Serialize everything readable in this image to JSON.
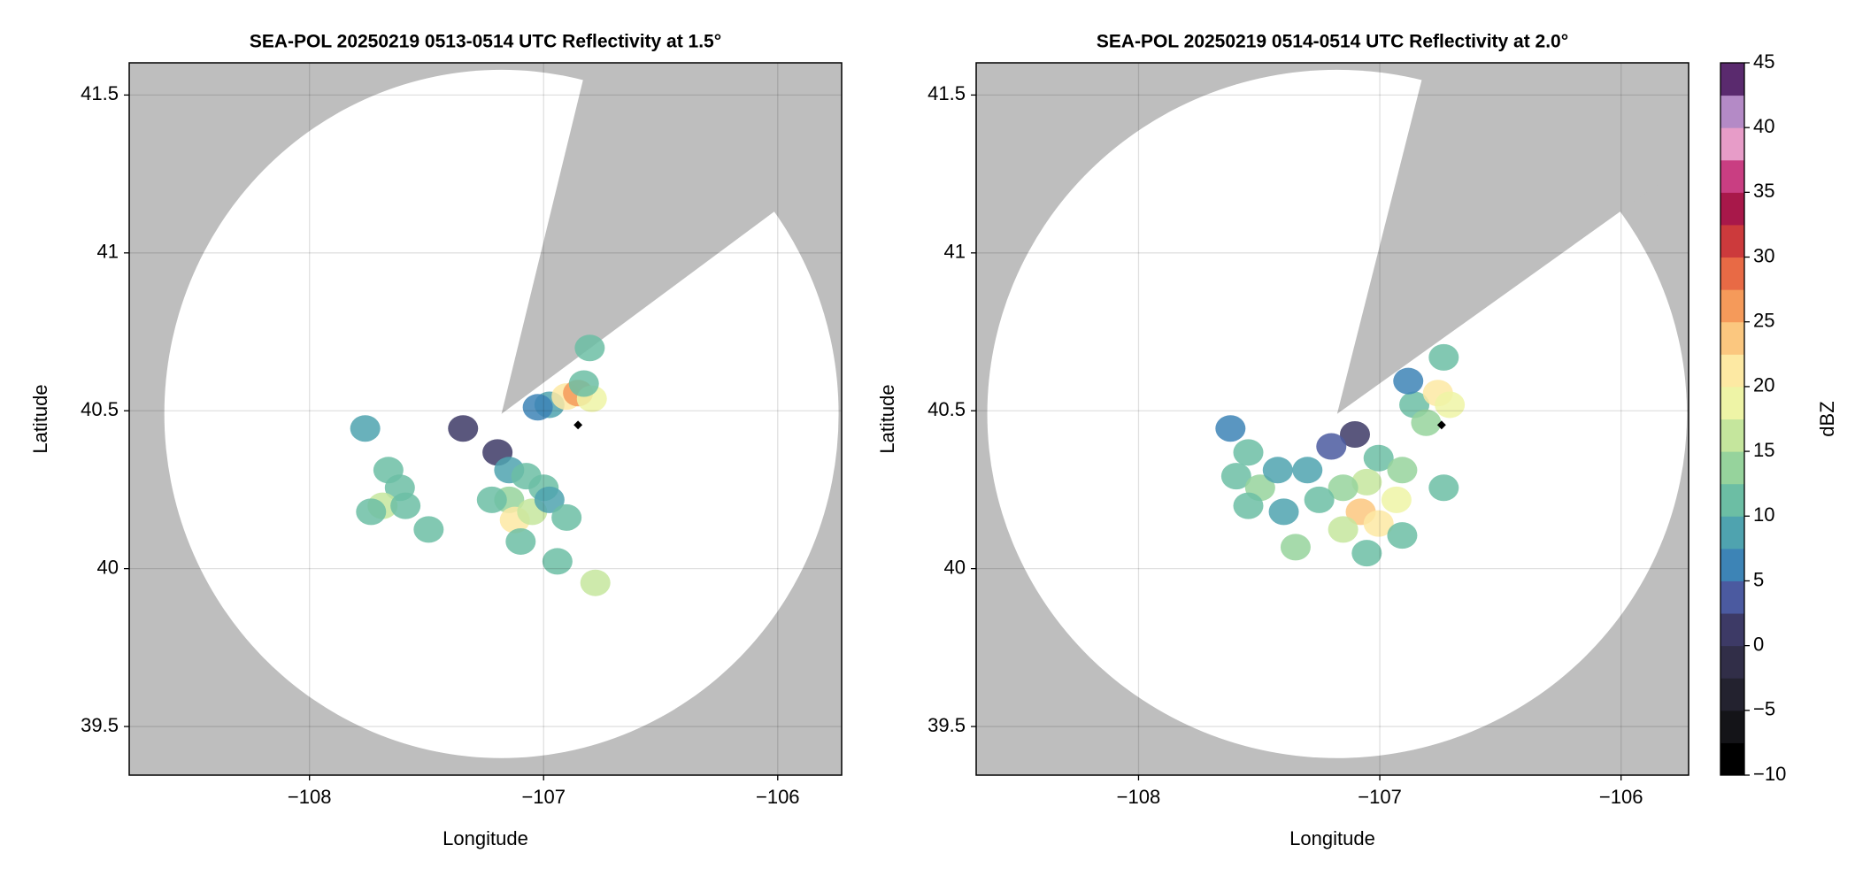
{
  "chart_data": [
    {
      "type": "radar_ppi",
      "title": "SEA-POL 20250219 0513-0514 UTC Reflectivity at 1.5°",
      "x_label": "Longitude",
      "y_label": "Latitude",
      "xlim": [
        -108.77,
        -105.727
      ],
      "ylim": [
        39.346,
        41.602
      ],
      "xticks": [
        {
          "value": -108,
          "label": "−108"
        },
        {
          "value": -107,
          "label": "−107"
        },
        {
          "value": -106,
          "label": "−106"
        }
      ],
      "yticks": [
        39.5,
        40.0,
        40.5,
        41.0,
        41.5
      ],
      "grid": true,
      "background": "#bebebe",
      "coverage_color": "#ffffff",
      "coverage": {
        "center_lon": -107.18,
        "center_lat": 40.49,
        "radius_lon": 1.44,
        "radius_lat": 1.09
      },
      "blocked_sector": [
        14,
        54
      ],
      "site": {
        "lon": -106.853,
        "lat": 40.455
      },
      "echoes": {
        "lon": [
          -106.975,
          -106.902,
          -106.853,
          -106.794,
          -106.828,
          -107.025,
          -106.803,
          -107.197,
          -107.147,
          -107.074,
          -107.0,
          -107.147,
          -107.221,
          -107.123,
          -107.049,
          -107.098,
          -106.975,
          -106.902,
          -107.344,
          -107.663,
          -107.614,
          -107.688,
          -107.59,
          -107.737,
          -107.762,
          -107.491,
          -106.779,
          -106.941
        ],
        "lat": [
          40.519,
          40.545,
          40.556,
          40.538,
          40.586,
          40.511,
          40.699,
          40.368,
          40.312,
          40.293,
          40.256,
          40.218,
          40.218,
          40.154,
          40.18,
          40.086,
          40.218,
          40.162,
          40.444,
          40.312,
          40.256,
          40.199,
          40.199,
          40.18,
          40.444,
          40.124,
          39.955,
          40.023
        ],
        "dbz": [
          8,
          20,
          25,
          18,
          12,
          5,
          12,
          0,
          8,
          12,
          10,
          14,
          10,
          22,
          16,
          12,
          8,
          10,
          2,
          10,
          12,
          16,
          10,
          12,
          8,
          10,
          17,
          10
        ]
      }
    },
    {
      "type": "radar_ppi",
      "title": "SEA-POL 20250219 0514-0514 UTC Reflectivity at 2.0°",
      "x_label": "Longitude",
      "y_label": "Latitude",
      "xlim": [
        -108.673,
        -105.72
      ],
      "ylim": [
        39.346,
        41.602
      ],
      "xticks": [
        {
          "value": -108,
          "label": "−108"
        },
        {
          "value": -107,
          "label": "−107"
        },
        {
          "value": -106,
          "label": "−106"
        }
      ],
      "yticks": [
        39.5,
        40.0,
        40.5,
        41.0,
        41.5
      ],
      "grid": true,
      "background": "#bebebe",
      "coverage_color": "#ffffff",
      "coverage": {
        "center_lon": -107.177,
        "center_lat": 40.49,
        "radius_lon": 1.45,
        "radius_lat": 1.09
      },
      "blocked_sector": [
        14,
        54
      ],
      "site": {
        "lon": -106.744,
        "lat": 40.455
      },
      "echoes": {
        "lon": [
          -106.857,
          -106.759,
          -106.71,
          -106.808,
          -106.735,
          -106.882,
          -107.103,
          -107.201,
          -107.005,
          -106.907,
          -107.054,
          -107.152,
          -106.931,
          -107.079,
          -107.005,
          -107.152,
          -106.907,
          -107.054,
          -107.251,
          -107.3,
          -107.545,
          -107.595,
          -107.496,
          -107.545,
          -107.423,
          -107.619,
          -107.398,
          -106.735,
          -107.349
        ],
        "lat": [
          40.519,
          40.556,
          40.519,
          40.462,
          40.669,
          40.594,
          40.425,
          40.387,
          40.35,
          40.312,
          40.274,
          40.256,
          40.218,
          40.18,
          40.143,
          40.124,
          40.105,
          40.049,
          40.218,
          40.312,
          40.368,
          40.293,
          40.256,
          40.199,
          40.312,
          40.444,
          40.18,
          40.256,
          40.068
        ],
        "dbz": [
          12,
          22,
          18,
          14,
          12,
          6,
          2,
          4,
          10,
          14,
          16,
          14,
          18,
          24,
          22,
          16,
          12,
          12,
          10,
          8,
          10,
          12,
          14,
          10,
          8,
          6,
          8,
          10,
          14
        ]
      }
    },
    {
      "type": "colorbar",
      "label": "dBZ",
      "lim": [
        -10,
        45
      ],
      "ticks": [
        {
          "value": -10,
          "label": "−10"
        },
        {
          "value": -5,
          "label": "−5"
        },
        0,
        5,
        10,
        15,
        20,
        25,
        30,
        35,
        40,
        45
      ],
      "colors": [
        "#000000",
        "#141418",
        "#23222f",
        "#312e48",
        "#3d3a66",
        "#4b5aa0",
        "#3d84b6",
        "#4fa3af",
        "#6cbea4",
        "#96d39c",
        "#c5e69d",
        "#eef4a6",
        "#fde9a3",
        "#fbc77f",
        "#f59a5a",
        "#e86a45",
        "#cc3a3c",
        "#a8184a",
        "#c93e82",
        "#e79cc8",
        "#b48ac6",
        "#5a2a6e"
      ]
    }
  ]
}
